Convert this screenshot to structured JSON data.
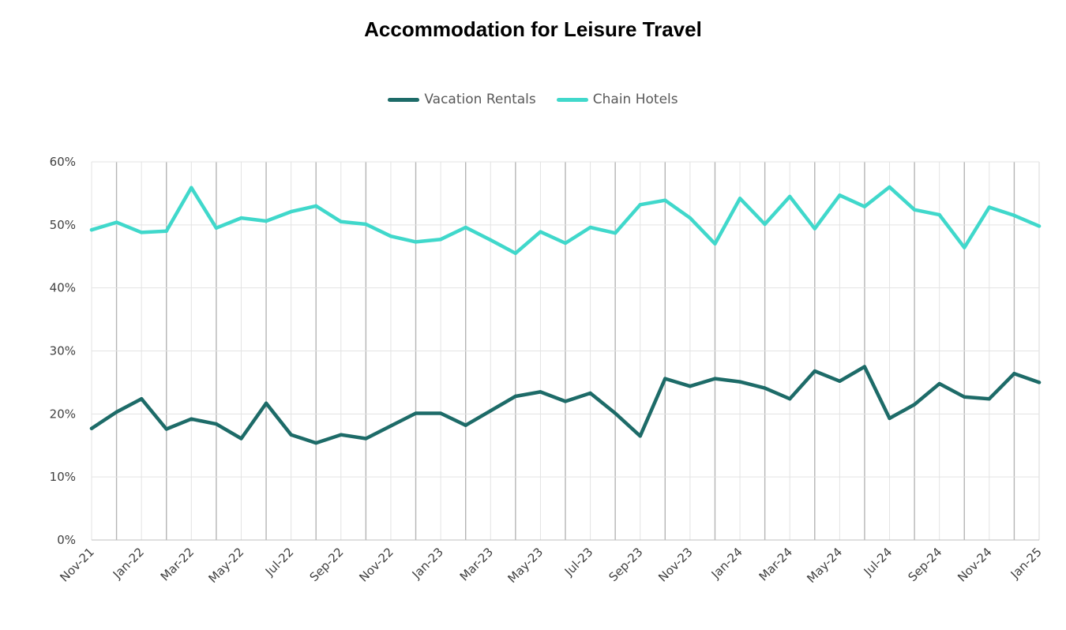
{
  "chart_data": {
    "type": "line",
    "title": "Accommodation for Leisure Travel",
    "xlabel": "",
    "ylabel": "",
    "ylim": [
      0,
      60
    ],
    "y_ticks": [
      "0%",
      "10%",
      "20%",
      "30%",
      "40%",
      "50%",
      "60%"
    ],
    "x_tick_labels": [
      "Nov-21",
      "Jan-22",
      "Mar-22",
      "May-22",
      "Jul-22",
      "Sep-22",
      "Nov-22",
      "Jan-23",
      "Mar-23",
      "May-23",
      "Jul-23",
      "Sep-23",
      "Nov-23",
      "Jan-24",
      "Mar-24",
      "May-24",
      "Jul-24",
      "Sep-24",
      "Nov-24",
      "Jan-25"
    ],
    "x": [
      "Nov-21",
      "Dec-21",
      "Jan-22",
      "Feb-22",
      "Mar-22",
      "Apr-22",
      "May-22",
      "Jun-22",
      "Jul-22",
      "Aug-22",
      "Sep-22",
      "Oct-22",
      "Nov-22",
      "Dec-22",
      "Jan-23",
      "Feb-23",
      "Mar-23",
      "Apr-23",
      "May-23",
      "Jun-23",
      "Jul-23",
      "Aug-23",
      "Sep-23",
      "Oct-23",
      "Nov-23",
      "Dec-23",
      "Jan-24",
      "Feb-24",
      "Mar-24",
      "Apr-24",
      "May-24",
      "Jun-24",
      "Jul-24",
      "Aug-24",
      "Sep-24",
      "Oct-24",
      "Nov-24",
      "Dec-24",
      "Jan-25"
    ],
    "grid": true,
    "legend_position": "top-center",
    "series": [
      {
        "name": "Vacation Rentals",
        "color": "#1d6b68",
        "values": [
          17.7,
          20.3,
          22.4,
          17.6,
          19.2,
          18.4,
          16.1,
          21.7,
          16.7,
          15.4,
          16.7,
          16.1,
          18.1,
          20.1,
          20.1,
          18.2,
          20.5,
          22.8,
          23.5,
          22.0,
          23.3,
          20.1,
          16.5,
          25.6,
          24.4,
          25.6,
          25.1,
          24.1,
          22.4,
          26.8,
          25.2,
          27.5,
          19.3,
          21.5,
          24.8,
          22.7,
          22.4,
          26.4,
          25.0
        ]
      },
      {
        "name": "Chain Hotels",
        "color": "#40d8cb",
        "values": [
          49.2,
          50.4,
          48.8,
          49.0,
          55.9,
          49.5,
          51.1,
          50.6,
          52.1,
          53.0,
          50.5,
          50.1,
          48.2,
          47.3,
          47.7,
          49.6,
          47.6,
          45.5,
          48.9,
          47.1,
          49.6,
          48.7,
          53.2,
          53.9,
          51.1,
          47.0,
          54.2,
          50.1,
          54.5,
          49.4,
          54.7,
          52.9,
          56.0,
          52.4,
          51.6,
          46.4,
          52.8,
          51.5,
          49.8
        ]
      }
    ]
  }
}
